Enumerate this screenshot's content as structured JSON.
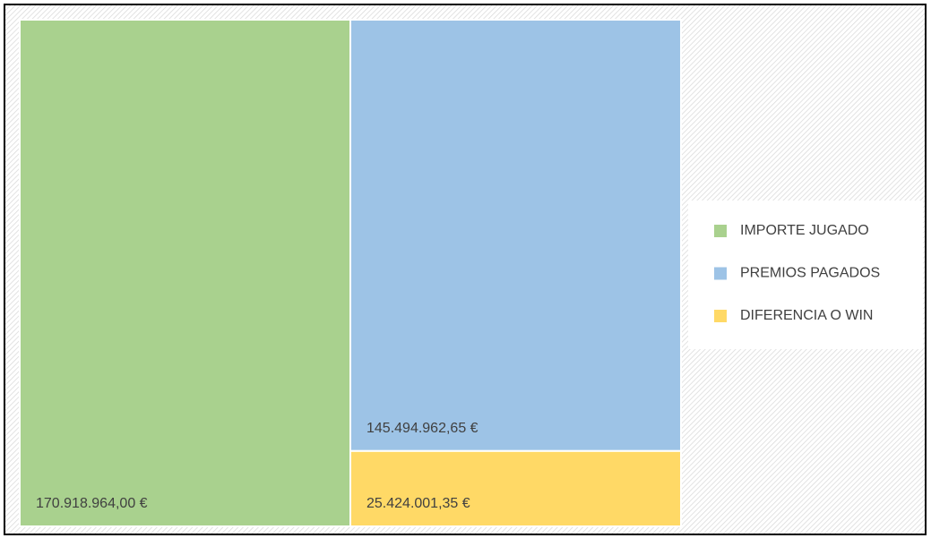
{
  "chart_data": {
    "type": "treemap",
    "categories": [
      "IMPORTE JUGADO",
      "PREMIOS PAGADOS",
      "DIFERENCIA O WIN"
    ],
    "values": [
      170918964.0,
      145494962.65,
      25424001.35
    ],
    "value_labels": [
      "170.918.964,00 €",
      "145.494.962,65 €",
      "25.424.001,35 €"
    ],
    "colors": [
      "#a9d18e",
      "#9dc3e6",
      "#ffd966"
    ],
    "legend": "right"
  }
}
